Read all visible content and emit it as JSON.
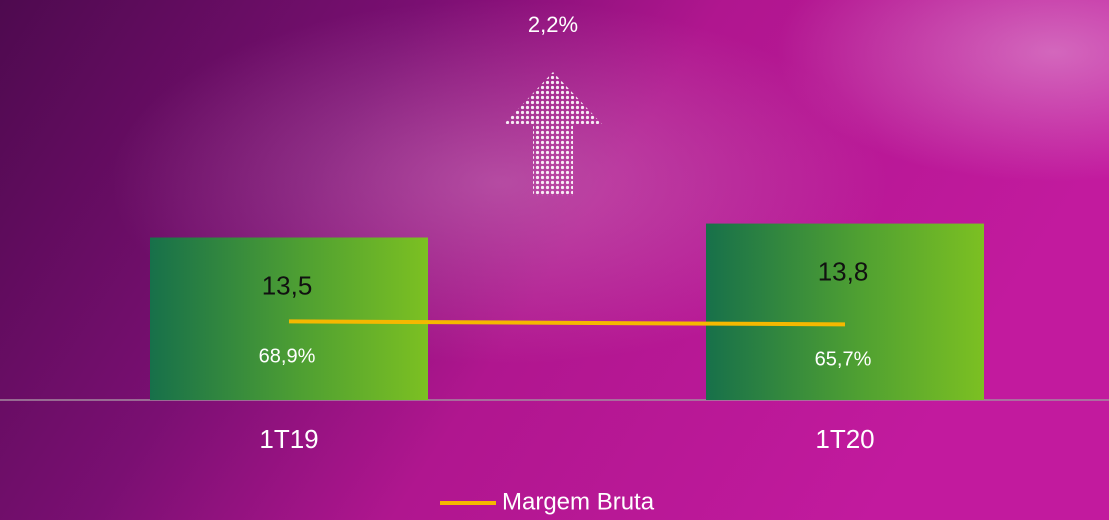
{
  "chart_data": {
    "type": "bar",
    "annotation": "2,2%",
    "categories": [
      "1T19",
      "1T20"
    ],
    "series": [
      {
        "type": "bar",
        "color": "#78be20",
        "values": [
          13.5,
          13.8
        ],
        "value_labels": [
          "13,5",
          "13,8"
        ]
      },
      {
        "type": "line",
        "name": "Margem Bruta",
        "axis": "y2",
        "color": "#f5b800",
        "values": [
          68.9,
          65.7
        ],
        "value_labels": [
          "68,9%",
          "65,7%"
        ]
      }
    ],
    "ylim": [
      10,
      18.4
    ],
    "y2lim": [
      -15,
      401
    ],
    "grid": false
  }
}
